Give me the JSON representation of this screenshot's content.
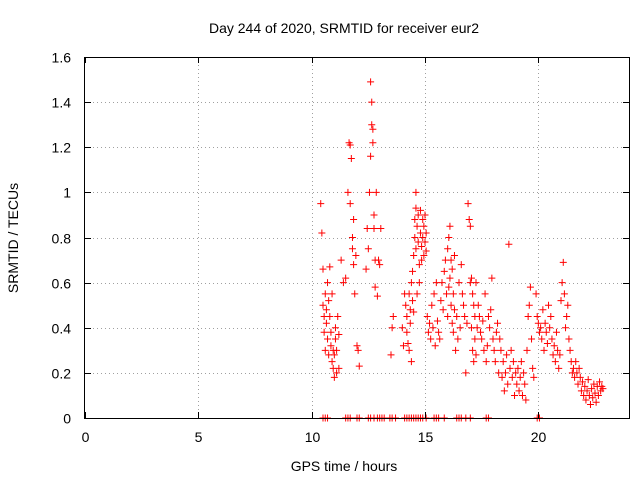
{
  "chart_data": {
    "type": "scatter",
    "title": "Day 244 of 2020, SRMTID for receiver eur2",
    "xlabel": "GPS time / hours",
    "ylabel": "SRMTID / TECUs",
    "xlim": [
      0,
      24
    ],
    "ylim": [
      0,
      1.6
    ],
    "xticks": [
      0,
      5,
      10,
      15,
      20
    ],
    "xtick_labels": [
      "0",
      "5",
      "10",
      "15",
      "20"
    ],
    "yticks": [
      0,
      0.2,
      0.4,
      0.6,
      0.8,
      1.0,
      1.2,
      1.4,
      1.6
    ],
    "ytick_labels": [
      "0",
      "0.2",
      "0.4",
      "0.6",
      "0.8",
      "1",
      "1.2",
      "1.4",
      "1.6"
    ],
    "grid": true,
    "marker": "+",
    "color": "#ff0000",
    "series": [
      {
        "name": "SRMTID",
        "points": [
          [
            10.4,
            0.95
          ],
          [
            10.45,
            0.82
          ],
          [
            10.5,
            0.66
          ],
          [
            10.5,
            0.5
          ],
          [
            10.55,
            0.45
          ],
          [
            10.55,
            0.38
          ],
          [
            10.6,
            0.55
          ],
          [
            10.6,
            0.3
          ],
          [
            10.65,
            0.48
          ],
          [
            10.65,
            0.42
          ],
          [
            10.7,
            0.6
          ],
          [
            10.7,
            0.35
          ],
          [
            10.75,
            0.52
          ],
          [
            10.75,
            0.28
          ],
          [
            10.8,
            0.45
          ],
          [
            10.8,
            0.67
          ],
          [
            10.85,
            0.38
          ],
          [
            10.85,
            0.32
          ],
          [
            10.9,
            0.55
          ],
          [
            10.9,
            0.25
          ],
          [
            10.95,
            0.3
          ],
          [
            10.95,
            0.22
          ],
          [
            11.0,
            0.28
          ],
          [
            11.0,
            0.18
          ],
          [
            11.05,
            0.35
          ],
          [
            11.05,
            0.4
          ],
          [
            11.1,
            0.3
          ],
          [
            11.1,
            0.2
          ],
          [
            11.15,
            0.45
          ],
          [
            11.2,
            0.22
          ],
          [
            11.2,
            0.37
          ],
          [
            11.3,
            0.7
          ],
          [
            11.4,
            0.6
          ],
          [
            11.5,
            0.62
          ],
          [
            11.6,
            1.0
          ],
          [
            11.65,
            1.22
          ],
          [
            11.7,
            1.21
          ],
          [
            11.7,
            0.95
          ],
          [
            11.75,
            1.15
          ],
          [
            11.8,
            0.8
          ],
          [
            11.8,
            0.75
          ],
          [
            11.85,
            0.88
          ],
          [
            11.85,
            0.68
          ],
          [
            11.9,
            0.55
          ],
          [
            11.95,
            0.72
          ],
          [
            12.0,
            0.32
          ],
          [
            12.05,
            0.3
          ],
          [
            12.1,
            0.23
          ],
          [
            12.4,
            0.66
          ],
          [
            12.45,
            0.84
          ],
          [
            12.5,
            0.75
          ],
          [
            12.55,
            1.0
          ],
          [
            12.6,
            1.16
          ],
          [
            12.6,
            1.49
          ],
          [
            12.65,
            1.3
          ],
          [
            12.65,
            1.4
          ],
          [
            12.7,
            1.28
          ],
          [
            12.7,
            1.22
          ],
          [
            12.75,
            0.9
          ],
          [
            12.75,
            0.84
          ],
          [
            12.8,
            0.7
          ],
          [
            12.8,
            0.58
          ],
          [
            12.85,
            1.0
          ],
          [
            12.9,
            0.54
          ],
          [
            12.95,
            0.7
          ],
          [
            13.0,
            0.68
          ],
          [
            13.05,
            0.84
          ],
          [
            13.5,
            0.28
          ],
          [
            13.55,
            0.4
          ],
          [
            13.6,
            0.45
          ],
          [
            14.0,
            0.4
          ],
          [
            14.05,
            0.32
          ],
          [
            14.1,
            0.55
          ],
          [
            14.15,
            0.5
          ],
          [
            14.2,
            0.45
          ],
          [
            14.2,
            0.38
          ],
          [
            14.25,
            0.33
          ],
          [
            14.3,
            0.55
          ],
          [
            14.3,
            0.3
          ],
          [
            14.35,
            0.48
          ],
          [
            14.35,
            0.42
          ],
          [
            14.4,
            0.6
          ],
          [
            14.4,
            0.25
          ],
          [
            14.45,
            0.65
          ],
          [
            14.45,
            0.52
          ],
          [
            14.5,
            0.72
          ],
          [
            14.5,
            0.47
          ],
          [
            14.55,
            0.88
          ],
          [
            14.55,
            0.8
          ],
          [
            14.6,
            0.93
          ],
          [
            14.6,
            0.75
          ],
          [
            14.6,
            1.0
          ],
          [
            14.65,
            0.85
          ],
          [
            14.65,
            0.55
          ],
          [
            14.7,
            0.9
          ],
          [
            14.7,
            0.78
          ],
          [
            14.75,
            0.68
          ],
          [
            14.75,
            0.6
          ],
          [
            14.8,
            0.92
          ],
          [
            14.8,
            0.82
          ],
          [
            14.85,
            0.76
          ],
          [
            14.85,
            0.7
          ],
          [
            14.9,
            0.88
          ],
          [
            14.9,
            0.8
          ],
          [
            14.95,
            0.85
          ],
          [
            14.95,
            0.72
          ],
          [
            15.0,
            0.78
          ],
          [
            15.0,
            0.9
          ],
          [
            15.05,
            0.82
          ],
          [
            15.05,
            0.74
          ],
          [
            15.1,
            0.45
          ],
          [
            15.15,
            0.38
          ],
          [
            15.2,
            0.42
          ],
          [
            15.25,
            0.35
          ],
          [
            15.3,
            0.5
          ],
          [
            15.35,
            0.4
          ],
          [
            15.4,
            0.55
          ],
          [
            15.45,
            0.32
          ],
          [
            15.5,
            0.6
          ],
          [
            15.55,
            0.43
          ],
          [
            15.6,
            0.38
          ],
          [
            15.65,
            0.35
          ],
          [
            15.7,
            0.52
          ],
          [
            15.75,
            0.6
          ],
          [
            15.8,
            0.48
          ],
          [
            15.85,
            0.65
          ],
          [
            15.9,
            0.7
          ],
          [
            15.95,
            0.55
          ],
          [
            16.0,
            0.75
          ],
          [
            16.0,
            0.45
          ],
          [
            16.05,
            0.8
          ],
          [
            16.05,
            0.58
          ],
          [
            16.1,
            0.85
          ],
          [
            16.1,
            0.62
          ],
          [
            16.15,
            0.7
          ],
          [
            16.15,
            0.5
          ],
          [
            16.2,
            0.66
          ],
          [
            16.2,
            0.42
          ],
          [
            16.25,
            0.55
          ],
          [
            16.25,
            0.38
          ],
          [
            16.3,
            0.72
          ],
          [
            16.3,
            0.48
          ],
          [
            16.35,
            0.3
          ],
          [
            16.4,
            0.45
          ],
          [
            16.45,
            0.35
          ],
          [
            16.5,
            0.6
          ],
          [
            16.55,
            0.4
          ],
          [
            16.6,
            0.68
          ],
          [
            16.65,
            0.55
          ],
          [
            16.7,
            0.5
          ],
          [
            16.75,
            0.45
          ],
          [
            16.8,
            0.2
          ],
          [
            16.85,
            0.42
          ],
          [
            16.9,
            0.95
          ],
          [
            16.95,
            0.88
          ],
          [
            17.0,
            0.85
          ],
          [
            17.0,
            0.6
          ],
          [
            17.05,
            0.62
          ],
          [
            17.05,
            0.4
          ],
          [
            17.1,
            0.55
          ],
          [
            17.1,
            0.3
          ],
          [
            17.15,
            0.5
          ],
          [
            17.15,
            0.25
          ],
          [
            17.2,
            0.45
          ],
          [
            17.2,
            0.35
          ],
          [
            17.25,
            0.6
          ],
          [
            17.25,
            0.28
          ],
          [
            17.3,
            0.4
          ],
          [
            17.35,
            0.5
          ],
          [
            17.4,
            0.45
          ],
          [
            17.45,
            0.38
          ],
          [
            17.5,
            0.35
          ],
          [
            17.55,
            0.43
          ],
          [
            17.6,
            0.3
          ],
          [
            17.65,
            0.55
          ],
          [
            17.7,
            0.25
          ],
          [
            17.75,
            0.32
          ],
          [
            17.8,
            0.45
          ],
          [
            17.85,
            0.4
          ],
          [
            17.9,
            0.48
          ],
          [
            17.95,
            0.62
          ],
          [
            18.0,
            0.35
          ],
          [
            18.05,
            0.3
          ],
          [
            18.1,
            0.25
          ],
          [
            18.15,
            0.38
          ],
          [
            18.2,
            0.42
          ],
          [
            18.25,
            0.2
          ],
          [
            18.3,
            0.35
          ],
          [
            18.35,
            0.3
          ],
          [
            18.4,
            0.18
          ],
          [
            18.45,
            0.25
          ],
          [
            18.5,
            0.12
          ],
          [
            18.55,
            0.2
          ],
          [
            18.6,
            0.28
          ],
          [
            18.65,
            0.15
          ],
          [
            18.7,
            0.77
          ],
          [
            18.75,
            0.22
          ],
          [
            18.8,
            0.3
          ],
          [
            18.85,
            0.18
          ],
          [
            18.9,
            0.25
          ],
          [
            18.95,
            0.1
          ],
          [
            19.0,
            0.2
          ],
          [
            19.05,
            0.15
          ],
          [
            19.1,
            0.22
          ],
          [
            19.15,
            0.12
          ],
          [
            19.2,
            0.18
          ],
          [
            19.25,
            0.25
          ],
          [
            19.3,
            0.1
          ],
          [
            19.35,
            0.2
          ],
          [
            19.4,
            0.15
          ],
          [
            19.45,
            0.08
          ],
          [
            19.5,
            0.3
          ],
          [
            19.55,
            0.45
          ],
          [
            19.6,
            0.5
          ],
          [
            19.65,
            0.58
          ],
          [
            19.7,
            0.35
          ],
          [
            19.75,
            0.22
          ],
          [
            19.8,
            0.18
          ],
          [
            19.9,
            0.55
          ],
          [
            19.95,
            0.45
          ],
          [
            20.0,
            0.42
          ],
          [
            20.05,
            0.38
          ],
          [
            20.1,
            0.4
          ],
          [
            20.15,
            0.35
          ],
          [
            20.2,
            0.48
          ],
          [
            20.25,
            0.3
          ],
          [
            20.3,
            0.42
          ],
          [
            20.35,
            0.38
          ],
          [
            20.4,
            0.33
          ],
          [
            20.45,
            0.5
          ],
          [
            20.5,
            0.4
          ],
          [
            20.55,
            0.45
          ],
          [
            20.6,
            0.35
          ],
          [
            20.65,
            0.28
          ],
          [
            20.7,
            0.32
          ],
          [
            20.75,
            0.25
          ],
          [
            20.8,
            0.38
          ],
          [
            20.85,
            0.3
          ],
          [
            20.9,
            0.22
          ],
          [
            20.95,
            0.28
          ],
          [
            21.0,
            0.52
          ],
          [
            21.05,
            0.6
          ],
          [
            21.1,
            0.69
          ],
          [
            21.15,
            0.55
          ],
          [
            21.2,
            0.4
          ],
          [
            21.25,
            0.45
          ],
          [
            21.3,
            0.5
          ],
          [
            21.35,
            0.35
          ],
          [
            21.4,
            0.3
          ],
          [
            21.45,
            0.25
          ],
          [
            21.5,
            0.2
          ],
          [
            21.55,
            0.22
          ],
          [
            21.6,
            0.18
          ],
          [
            21.65,
            0.25
          ],
          [
            21.7,
            0.2
          ],
          [
            21.75,
            0.15
          ],
          [
            21.8,
            0.22
          ],
          [
            21.85,
            0.18
          ],
          [
            21.9,
            0.12
          ],
          [
            21.95,
            0.16
          ],
          [
            22.0,
            0.1
          ],
          [
            22.05,
            0.14
          ],
          [
            22.1,
            0.08
          ],
          [
            22.15,
            0.12
          ],
          [
            22.2,
            0.17
          ],
          [
            22.25,
            0.1
          ],
          [
            22.3,
            0.06
          ],
          [
            22.35,
            0.13
          ],
          [
            22.4,
            0.09
          ],
          [
            22.45,
            0.15
          ],
          [
            22.5,
            0.11
          ],
          [
            22.55,
            0.07
          ],
          [
            22.6,
            0.14
          ],
          [
            22.65,
            0.1
          ],
          [
            22.7,
            0.16
          ],
          [
            22.75,
            0.12
          ],
          [
            22.8,
            0.14
          ],
          [
            22.85,
            0.13
          ],
          [
            10.5,
            0.0
          ],
          [
            10.6,
            0.0
          ],
          [
            10.7,
            0.0
          ],
          [
            11.5,
            0.0
          ],
          [
            11.6,
            0.0
          ],
          [
            11.7,
            0.0
          ],
          [
            12.0,
            0.0
          ],
          [
            12.1,
            0.0
          ],
          [
            12.5,
            0.0
          ],
          [
            12.6,
            0.0
          ],
          [
            12.75,
            0.0
          ],
          [
            12.9,
            0.0
          ],
          [
            13.0,
            0.0
          ],
          [
            13.1,
            0.0
          ],
          [
            13.2,
            0.0
          ],
          [
            13.45,
            0.0
          ],
          [
            13.55,
            0.0
          ],
          [
            13.7,
            0.0
          ],
          [
            14.1,
            0.0
          ],
          [
            14.2,
            0.0
          ],
          [
            14.3,
            0.0
          ],
          [
            14.4,
            0.0
          ],
          [
            14.5,
            0.0
          ],
          [
            14.6,
            0.0
          ],
          [
            14.7,
            0.0
          ],
          [
            14.8,
            0.0
          ],
          [
            14.9,
            0.0
          ],
          [
            15.05,
            0.0
          ],
          [
            15.4,
            0.0
          ],
          [
            15.5,
            0.0
          ],
          [
            15.6,
            0.0
          ],
          [
            15.85,
            0.0
          ],
          [
            16.4,
            0.0
          ],
          [
            16.5,
            0.0
          ],
          [
            16.6,
            0.0
          ],
          [
            16.8,
            0.0
          ],
          [
            17.0,
            0.0
          ],
          [
            17.7,
            0.0
          ],
          [
            17.8,
            0.0
          ],
          [
            19.95,
            0.0
          ],
          [
            20.05,
            0.0
          ]
        ]
      }
    ]
  }
}
